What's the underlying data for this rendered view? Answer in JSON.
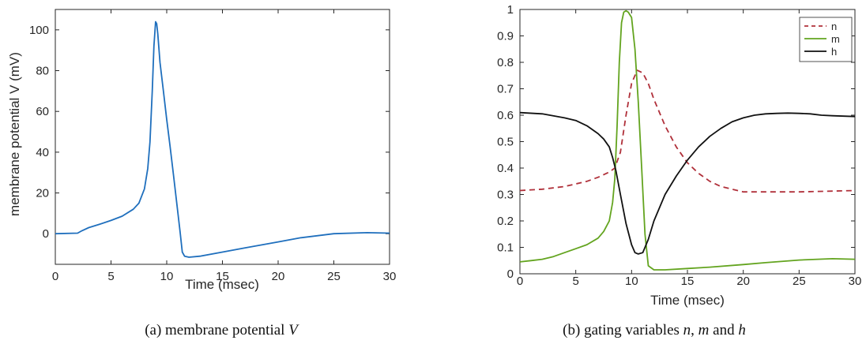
{
  "chart_data": [
    {
      "type": "line",
      "caption": {
        "prefix": "(a) membrane potential ",
        "var": "V"
      },
      "xlabel": "Time (msec)",
      "ylabel": "membrane potential V (mV)",
      "xlim": [
        0,
        30
      ],
      "ylim": [
        -15,
        110
      ],
      "xticks": [
        0,
        5,
        10,
        15,
        20,
        25,
        30
      ],
      "yticks": [
        0,
        20,
        40,
        60,
        80,
        100
      ],
      "grid": false,
      "colors": {
        "V": "#1f6fbd"
      },
      "series": [
        {
          "key": "V",
          "x": [
            0,
            2,
            2.4,
            3,
            4,
            5,
            6,
            7,
            7.5,
            8,
            8.3,
            8.5,
            8.7,
            8.85,
            9,
            9.1,
            9.2,
            9.4,
            9.7,
            10,
            10.3,
            10.6,
            10.9,
            11.2,
            11.4,
            11.6,
            12,
            13,
            15,
            17,
            20,
            22,
            25,
            28,
            30
          ],
          "y": [
            0,
            0.3,
            1.5,
            3,
            4.7,
            6.5,
            8.6,
            12,
            15,
            22,
            32,
            45,
            70,
            92,
            104,
            103,
            98,
            84,
            70,
            56,
            43,
            29,
            15,
            1,
            -9,
            -11,
            -11.5,
            -11,
            -9,
            -7,
            -4,
            -2,
            0,
            0.5,
            0.3
          ]
        }
      ]
    },
    {
      "type": "line",
      "caption": {
        "prefix": "(b) gating variables ",
        "n": "n",
        "sep1": ", ",
        "m": "m",
        "sep2": " and ",
        "h": "h"
      },
      "xlabel": "Time (msec)",
      "ylabel": "",
      "xlim": [
        0,
        30
      ],
      "ylim": [
        0,
        1
      ],
      "xticks": [
        0,
        5,
        10,
        15,
        20,
        25,
        30
      ],
      "yticks": [
        0,
        0.1,
        0.2,
        0.3,
        0.4,
        0.5,
        0.6,
        0.7,
        0.8,
        0.9,
        1
      ],
      "grid": false,
      "legend": "top-right",
      "series": [
        {
          "name": "n",
          "color": "#b0303a",
          "dash": "7,5",
          "x": [
            0,
            2,
            4,
            6,
            7,
            8,
            8.5,
            9,
            9.5,
            10,
            10.5,
            11,
            11.5,
            12,
            13,
            14,
            15,
            16,
            17,
            18,
            20,
            22,
            25,
            30
          ],
          "y": [
            0.315,
            0.32,
            0.33,
            0.35,
            0.365,
            0.385,
            0.4,
            0.46,
            0.6,
            0.72,
            0.77,
            0.76,
            0.72,
            0.66,
            0.56,
            0.48,
            0.42,
            0.38,
            0.35,
            0.33,
            0.31,
            0.31,
            0.31,
            0.315
          ]
        },
        {
          "name": "m",
          "color": "#63a41f",
          "dash": "",
          "x": [
            0,
            1,
            2,
            3,
            4,
            5,
            6,
            7,
            7.5,
            8,
            8.3,
            8.5,
            8.7,
            8.9,
            9.1,
            9.3,
            9.5,
            9.7,
            10,
            10.3,
            10.6,
            10.9,
            11.2,
            11.5,
            12,
            13,
            15,
            17,
            20,
            22,
            25,
            28,
            30
          ],
          "y": [
            0.045,
            0.05,
            0.055,
            0.065,
            0.08,
            0.095,
            0.11,
            0.135,
            0.16,
            0.2,
            0.27,
            0.36,
            0.56,
            0.8,
            0.95,
            0.99,
            0.995,
            0.99,
            0.97,
            0.85,
            0.65,
            0.4,
            0.15,
            0.03,
            0.015,
            0.015,
            0.02,
            0.025,
            0.035,
            0.042,
            0.052,
            0.057,
            0.055
          ]
        },
        {
          "name": "h",
          "color": "#111111",
          "dash": "",
          "x": [
            0,
            2,
            4,
            5,
            6,
            7,
            7.5,
            8,
            8.3,
            8.6,
            9,
            9.5,
            10,
            10.3,
            10.6,
            11,
            11.5,
            12,
            13,
            14,
            15,
            16,
            17,
            18,
            19,
            20,
            21,
            22,
            23,
            24,
            25,
            26,
            27,
            28,
            30
          ],
          "y": [
            0.61,
            0.605,
            0.59,
            0.58,
            0.56,
            0.53,
            0.51,
            0.48,
            0.44,
            0.39,
            0.3,
            0.19,
            0.11,
            0.08,
            0.075,
            0.08,
            0.13,
            0.2,
            0.3,
            0.37,
            0.43,
            0.48,
            0.52,
            0.55,
            0.575,
            0.59,
            0.6,
            0.605,
            0.607,
            0.608,
            0.607,
            0.605,
            0.6,
            0.598,
            0.595
          ]
        }
      ]
    }
  ]
}
